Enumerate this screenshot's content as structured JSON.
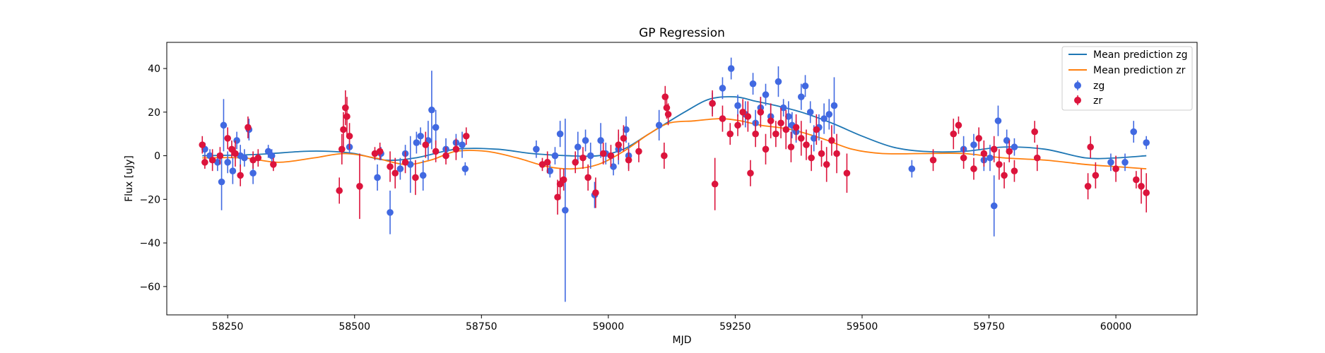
{
  "chart_data": {
    "type": "scatter",
    "title": "GP Regression",
    "xlabel": "MJD",
    "ylabel": "Flux [uJy]",
    "xlim": [
      58130,
      60160
    ],
    "ylim": [
      -73,
      52
    ],
    "x_ticks": [
      58250,
      58500,
      58750,
      59000,
      59250,
      59500,
      59750,
      60000
    ],
    "y_ticks": [
      -60,
      -40,
      -20,
      0,
      20,
      40
    ],
    "grid": false,
    "legend_position": "top-right",
    "colors": {
      "zg": "#4169e1",
      "zr": "#dc143c",
      "mean_zg": "#1f77b4",
      "mean_zr": "#ff7f0e"
    },
    "legend": [
      "Mean prediction zg",
      "Mean prediction zr",
      "zg",
      "zr"
    ],
    "series": [
      {
        "name": "Mean prediction zg",
        "kind": "line",
        "color": "#1f77b4",
        "x": [
          58200,
          58300,
          58400,
          58450,
          58500,
          58560,
          58620,
          58700,
          58780,
          58850,
          58920,
          58980,
          59030,
          59080,
          59150,
          59200,
          59250,
          59290,
          59330,
          59380,
          59440,
          59500,
          59560,
          59620,
          59700,
          59780,
          59860,
          59940,
          60000,
          60060
        ],
        "y": [
          0,
          0.5,
          2,
          2,
          1,
          -2,
          -1,
          3,
          3,
          1,
          0,
          0,
          3,
          10,
          20,
          26,
          27,
          25,
          23,
          20,
          15,
          9,
          4,
          2,
          2,
          4,
          3,
          -1,
          -1,
          0
        ]
      },
      {
        "name": "Mean prediction zr",
        "kind": "line",
        "color": "#ff7f0e",
        "x": [
          58200,
          58280,
          58350,
          58420,
          58480,
          58540,
          58600,
          58650,
          58700,
          58760,
          58820,
          58880,
          58930,
          58980,
          59030,
          59080,
          59120,
          59170,
          59220,
          59260,
          59300,
          59360,
          59420,
          59480,
          59540,
          59620,
          59700,
          59780,
          59860,
          59940,
          60000,
          60060
        ],
        "y": [
          -1,
          -1,
          -3,
          -1,
          1,
          -1,
          -4,
          -2,
          2,
          2,
          -1,
          -5,
          -6,
          -4,
          2,
          10,
          15,
          16,
          17,
          16,
          14,
          12,
          8,
          3,
          1,
          1,
          1,
          -1,
          -2,
          -4,
          -5,
          -6
        ]
      },
      {
        "name": "zg",
        "kind": "errorbar",
        "color": "#4169e1",
        "x": [
          58205,
          58215,
          58230,
          58238,
          58242,
          58250,
          58260,
          58268,
          58275,
          58283,
          58292,
          58300,
          58330,
          58337,
          58490,
          58545,
          58552,
          58570,
          58590,
          58600,
          58610,
          58622,
          58630,
          58635,
          58645,
          58652,
          58660,
          58680,
          58700,
          58712,
          58718,
          58858,
          58885,
          58895,
          58905,
          58915,
          58940,
          58955,
          58965,
          58973,
          58985,
          58995,
          59010,
          59020,
          59035,
          59040,
          59100,
          59205,
          59225,
          59242,
          59255,
          59270,
          59285,
          59290,
          59300,
          59310,
          59320,
          59335,
          59345,
          59355,
          59362,
          59370,
          59380,
          59388,
          59398,
          59405,
          59415,
          59425,
          59435,
          59445,
          59598,
          59700,
          59720,
          59740,
          59752,
          59760,
          59768,
          59785,
          59800,
          59990,
          60018,
          60035,
          60060
        ],
        "y": [
          3,
          0,
          -3,
          -12,
          14,
          -3,
          -7,
          7,
          0,
          -1,
          12,
          -8,
          2,
          0,
          4,
          -10,
          1,
          -26,
          -6,
          1,
          -4,
          6,
          9,
          -9,
          7,
          21,
          13,
          3,
          6,
          5,
          -6,
          3,
          -7,
          0,
          10,
          -25,
          4,
          7,
          0,
          -18,
          7,
          1,
          -5,
          3,
          12,
          0,
          14,
          24,
          31,
          40,
          23,
          19,
          33,
          15,
          22,
          28,
          18,
          34,
          22,
          18,
          14,
          11,
          27,
          32,
          20,
          8,
          13,
          17,
          19,
          23,
          -6,
          3,
          5,
          -2,
          -1,
          -23,
          16,
          7,
          4,
          -3,
          -3,
          11,
          6
        ],
        "err": [
          3,
          3,
          4,
          13,
          12,
          5,
          6,
          4,
          5,
          4,
          5,
          5,
          3,
          3,
          3,
          6,
          3,
          10,
          5,
          4,
          13,
          5,
          4,
          7,
          9,
          18,
          8,
          5,
          4,
          6,
          3,
          4,
          3,
          4,
          6,
          42,
          7,
          5,
          6,
          6,
          8,
          5,
          4,
          7,
          6,
          6,
          7,
          5,
          5,
          5,
          5,
          6,
          5,
          6,
          5,
          5,
          6,
          7,
          4,
          7,
          6,
          5,
          6,
          5,
          5,
          6,
          6,
          7,
          7,
          13,
          4,
          6,
          5,
          5,
          6,
          14,
          7,
          5,
          4,
          4,
          4,
          5,
          3
        ]
      },
      {
        "name": "zr",
        "kind": "errorbar",
        "color": "#dc143c",
        "x": [
          58200,
          58205,
          58220,
          58235,
          58250,
          58258,
          58265,
          58275,
          58290,
          58300,
          58310,
          58340,
          58470,
          58475,
          58478,
          58482,
          58485,
          58490,
          58510,
          58540,
          58550,
          58570,
          58580,
          58600,
          58620,
          58640,
          58660,
          58680,
          58700,
          58720,
          58870,
          58880,
          58900,
          58905,
          58912,
          58935,
          58950,
          58960,
          58975,
          58990,
          59005,
          59020,
          59030,
          59040,
          59060,
          59110,
          59112,
          59115,
          59118,
          59205,
          59210,
          59225,
          59240,
          59255,
          59265,
          59275,
          59280,
          59290,
          59300,
          59310,
          59320,
          59330,
          59340,
          59350,
          59360,
          59370,
          59380,
          59390,
          59400,
          59410,
          59420,
          59430,
          59440,
          59450,
          59470,
          59640,
          59680,
          59690,
          59700,
          59720,
          59730,
          59740,
          59760,
          59770,
          59780,
          59790,
          59800,
          59840,
          59845,
          59945,
          59950,
          59960,
          60000,
          60040,
          60050,
          60060
        ],
        "y": [
          5,
          -3,
          -2,
          0,
          8,
          3,
          1,
          -9,
          13,
          -2,
          -1,
          -4,
          -16,
          3,
          12,
          22,
          18,
          9,
          -14,
          1,
          2,
          -5,
          -8,
          -3,
          -10,
          5,
          2,
          0,
          3,
          9,
          -4,
          -3,
          -19,
          -13,
          -11,
          -3,
          -1,
          -10,
          -17,
          1,
          0,
          5,
          8,
          -2,
          2,
          0,
          27,
          22,
          19,
          24,
          -13,
          17,
          10,
          14,
          20,
          18,
          -8,
          10,
          20,
          3,
          16,
          10,
          15,
          12,
          4,
          13,
          8,
          5,
          -1,
          12,
          1,
          -4,
          7,
          1,
          -8,
          -2,
          10,
          14,
          -1,
          -6,
          8,
          1,
          3,
          -4,
          -9,
          2,
          -7,
          11,
          -1,
          -14,
          4,
          -9,
          -6,
          -11,
          -14,
          -17
        ],
        "err": [
          4,
          3,
          5,
          4,
          5,
          4,
          6,
          5,
          5,
          4,
          4,
          3,
          6,
          7,
          8,
          8,
          9,
          6,
          15,
          3,
          4,
          7,
          7,
          5,
          8,
          6,
          5,
          4,
          5,
          4,
          3,
          5,
          8,
          7,
          5,
          5,
          5,
          6,
          7,
          5,
          5,
          7,
          6,
          5,
          5,
          6,
          5,
          5,
          5,
          6,
          12,
          6,
          5,
          5,
          6,
          7,
          6,
          6,
          7,
          7,
          8,
          6,
          7,
          9,
          7,
          6,
          8,
          7,
          6,
          7,
          6,
          8,
          7,
          9,
          9,
          5,
          7,
          4,
          5,
          5,
          5,
          6,
          6,
          7,
          6,
          5,
          5,
          5,
          6,
          6,
          5,
          6,
          6,
          4,
          8,
          9
        ]
      }
    ]
  }
}
